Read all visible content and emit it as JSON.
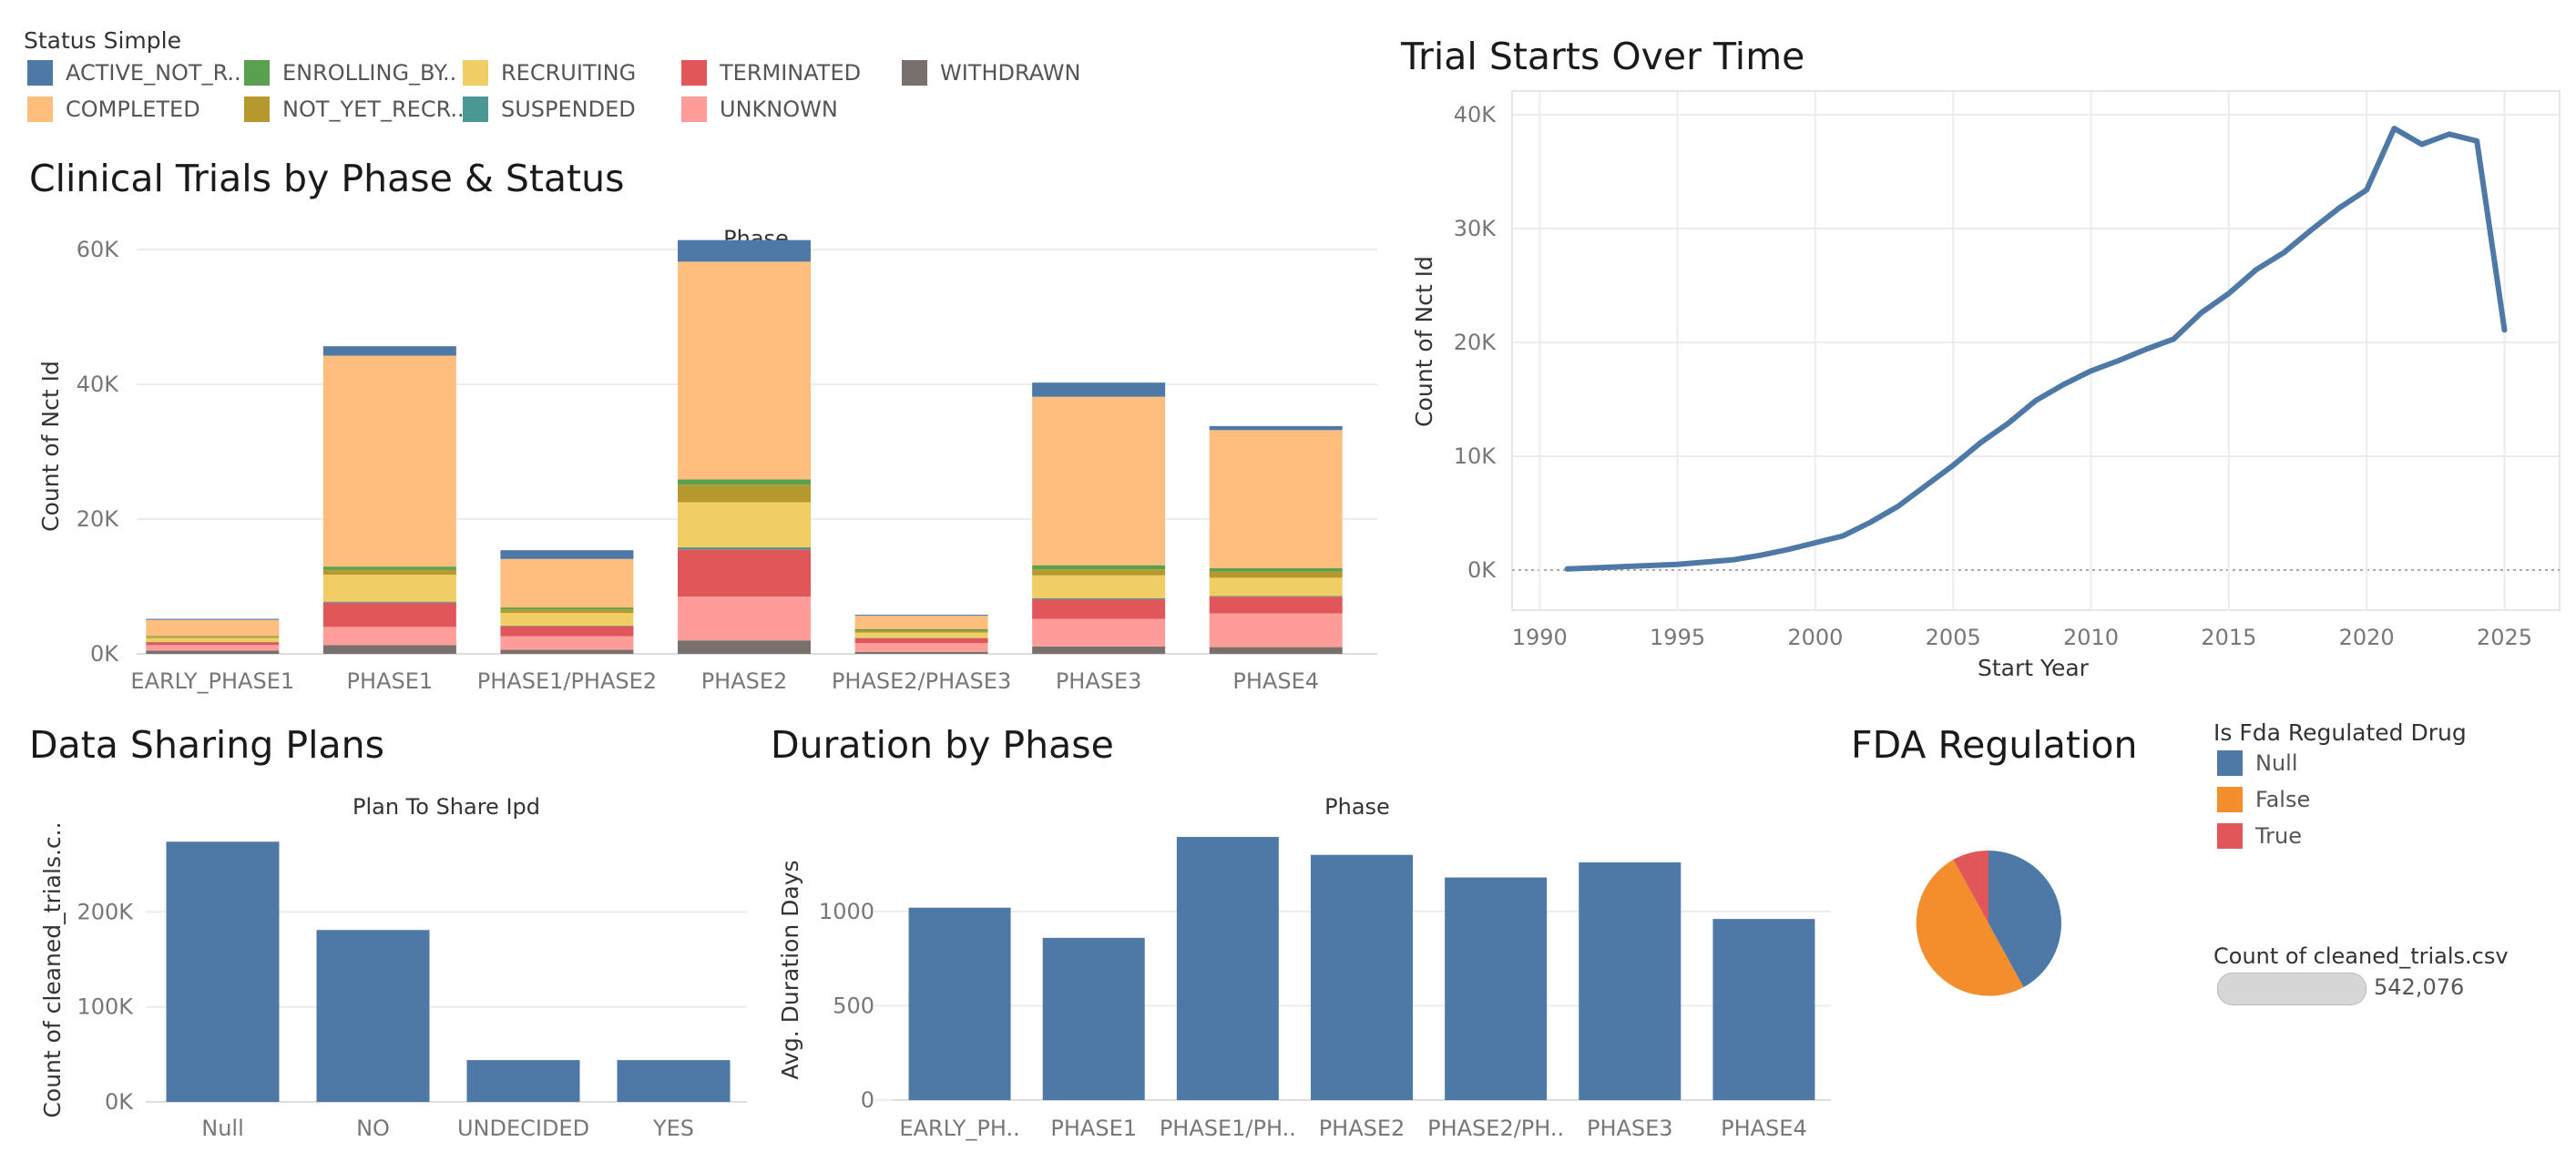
{
  "status_legend": {
    "title": "Status Simple",
    "items": [
      {
        "label": "ACTIVE_NOT_R..",
        "color": "#4e79a7"
      },
      {
        "label": "COMPLETED",
        "color": "#ffbe7d"
      },
      {
        "label": "ENROLLING_BY..",
        "color": "#59a14f"
      },
      {
        "label": "NOT_YET_RECR..",
        "color": "#b6992d"
      },
      {
        "label": "RECRUITING",
        "color": "#f1ce63"
      },
      {
        "label": "SUSPENDED",
        "color": "#499894"
      },
      {
        "label": "TERMINATED",
        "color": "#e15759"
      },
      {
        "label": "UNKNOWN",
        "color": "#ff9d9a"
      },
      {
        "label": "WITHDRAWN",
        "color": "#79706e"
      }
    ]
  },
  "titles": {
    "phase_status": "Clinical Trials by Phase & Status",
    "trial_starts": "Trial Starts Over Time",
    "data_sharing": "Data Sharing Plans",
    "duration": "Duration by Phase",
    "fda": "FDA Regulation"
  },
  "fda_legend": {
    "title": "Is Fda Regulated Drug",
    "items": [
      {
        "label": "Null",
        "color": "#4e79a7"
      },
      {
        "label": "False",
        "color": "#f28e2b"
      },
      {
        "label": "True",
        "color": "#e15759"
      }
    ]
  },
  "count_card": {
    "label": "Count of cleaned_trials.csv",
    "value": "542,076"
  },
  "chart_data": [
    {
      "id": "phase_status",
      "type": "bar",
      "stacked": true,
      "header": "Phase",
      "ylabel": "Count of Nct Id",
      "ylim": [
        0,
        60000
      ],
      "yticks": [
        "0K",
        "20K",
        "40K",
        "60K"
      ],
      "categories": [
        "EARLY_PHASE1",
        "PHASE1",
        "PHASE1/PHASE2",
        "PHASE2",
        "PHASE2/PHASE3",
        "PHASE3",
        "PHASE4"
      ],
      "series": [
        {
          "name": "WITHDRAWN",
          "color": "#79706e",
          "values": [
            500,
            1300,
            600,
            2000,
            300,
            1100,
            1000
          ]
        },
        {
          "name": "UNKNOWN",
          "color": "#ff9d9a",
          "values": [
            800,
            2700,
            2000,
            6500,
            1300,
            4100,
            5000
          ]
        },
        {
          "name": "TERMINATED",
          "color": "#e15759",
          "values": [
            400,
            3600,
            1500,
            7000,
            700,
            2900,
            2500
          ]
        },
        {
          "name": "SUSPENDED",
          "color": "#499894",
          "values": [
            50,
            150,
            80,
            300,
            50,
            150,
            100
          ]
        },
        {
          "name": "RECRUITING",
          "color": "#f1ce63",
          "values": [
            600,
            4000,
            1900,
            6700,
            800,
            3400,
            2700
          ]
        },
        {
          "name": "NOT_YET_RECR..",
          "color": "#b6992d",
          "values": [
            200,
            700,
            500,
            2600,
            300,
            900,
            900
          ]
        },
        {
          "name": "ENROLLING_BY..",
          "color": "#59a14f",
          "values": [
            100,
            500,
            300,
            800,
            200,
            600,
            500
          ]
        },
        {
          "name": "COMPLETED",
          "color": "#ffbe7d",
          "values": [
            2400,
            31300,
            7200,
            32300,
            2000,
            25000,
            20500
          ]
        },
        {
          "name": "ACTIVE_NOT_R..",
          "color": "#4e79a7",
          "values": [
            150,
            1400,
            1300,
            3200,
            150,
            2100,
            600
          ]
        }
      ]
    },
    {
      "id": "trial_starts",
      "type": "line",
      "xlabel": "Start Year",
      "ylabel": "Count of Nct Id",
      "xlim": [
        1989,
        2027
      ],
      "ylim": [
        0,
        40000
      ],
      "xticks": [
        1990,
        1995,
        2000,
        2005,
        2010,
        2015,
        2020,
        2025
      ],
      "yticks": [
        "0K",
        "10K",
        "20K",
        "30K",
        "40K"
      ],
      "color": "#4e79a7",
      "x": [
        1991,
        1992,
        1993,
        1994,
        1995,
        1996,
        1997,
        1998,
        1999,
        2000,
        2001,
        2002,
        2003,
        2004,
        2005,
        2006,
        2007,
        2008,
        2009,
        2010,
        2011,
        2012,
        2013,
        2014,
        2015,
        2016,
        2017,
        2018,
        2019,
        2020,
        2021,
        2022,
        2023,
        2024,
        2025
      ],
      "y": [
        100,
        200,
        300,
        400,
        500,
        700,
        900,
        1300,
        1800,
        2400,
        3000,
        4200,
        5600,
        7400,
        9200,
        11200,
        12900,
        14900,
        16300,
        17500,
        18400,
        19400,
        20300,
        22600,
        24300,
        26400,
        27900,
        29900,
        31800,
        33400,
        38800,
        37400,
        38300,
        37700,
        21100
      ]
    },
    {
      "id": "data_sharing",
      "type": "bar",
      "header": "Plan To Share Ipd",
      "ylabel": "Count of cleaned_trials.c..",
      "ylim": [
        0,
        280000
      ],
      "yticks": [
        "0K",
        "100K",
        "200K"
      ],
      "categories": [
        "Null",
        "NO",
        "UNDECIDED",
        "YES"
      ],
      "color": "#4e79a7",
      "values": [
        274000,
        181000,
        44000,
        44000
      ]
    },
    {
      "id": "duration",
      "type": "bar",
      "header": "Phase",
      "ylabel": "Avg. Duration Days",
      "ylim": [
        0,
        1400
      ],
      "yticks": [
        "0",
        "500",
        "1000"
      ],
      "categories": [
        "EARLY_PH..",
        "PHASE1",
        "PHASE1/PH..",
        "PHASE2",
        "PHASE2/PH..",
        "PHASE3",
        "PHASE4"
      ],
      "color": "#4e79a7",
      "values": [
        1020,
        860,
        1395,
        1300,
        1180,
        1260,
        960
      ]
    },
    {
      "id": "fda",
      "type": "pie",
      "slices": [
        {
          "label": "Null",
          "value": 42,
          "color": "#4e79a7"
        },
        {
          "label": "False",
          "value": 50,
          "color": "#f28e2b"
        },
        {
          "label": "True",
          "value": 8,
          "color": "#e15759"
        }
      ]
    }
  ]
}
